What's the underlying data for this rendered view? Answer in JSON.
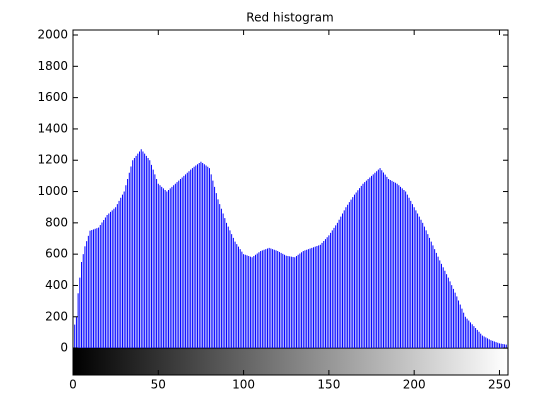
{
  "chart_data": {
    "type": "stem",
    "title": "Red histogram",
    "x": [
      0,
      1,
      2,
      3,
      4,
      5,
      6,
      7,
      8,
      9,
      10,
      11,
      12,
      13,
      14,
      15,
      16,
      17,
      18,
      19,
      20,
      21,
      22,
      23,
      24,
      25,
      26,
      27,
      28,
      29,
      30,
      31,
      32,
      33,
      34,
      35,
      36,
      37,
      38,
      39,
      40,
      41,
      42,
      43,
      44,
      45,
      46,
      47,
      48,
      49,
      50,
      51,
      52,
      53,
      54,
      55,
      56,
      57,
      58,
      59,
      60,
      61,
      62,
      63,
      64,
      65,
      66,
      67,
      68,
      69,
      70,
      71,
      72,
      73,
      74,
      75,
      76,
      77,
      78,
      79,
      80,
      81,
      82,
      83,
      84,
      85,
      86,
      87,
      88,
      89,
      90,
      91,
      92,
      93,
      94,
      95,
      96,
      97,
      98,
      99,
      100,
      101,
      102,
      103,
      104,
      105,
      106,
      107,
      108,
      109,
      110,
      111,
      112,
      113,
      114,
      115,
      116,
      117,
      118,
      119,
      120,
      121,
      122,
      123,
      124,
      125,
      126,
      127,
      128,
      129,
      130,
      131,
      132,
      133,
      134,
      135,
      136,
      137,
      138,
      139,
      140,
      141,
      142,
      143,
      144,
      145,
      146,
      147,
      148,
      149,
      150,
      151,
      152,
      153,
      154,
      155,
      156,
      157,
      158,
      159,
      160,
      161,
      162,
      163,
      164,
      165,
      166,
      167,
      168,
      169,
      170,
      171,
      172,
      173,
      174,
      175,
      176,
      177,
      178,
      179,
      180,
      181,
      182,
      183,
      184,
      185,
      186,
      187,
      188,
      189,
      190,
      191,
      192,
      193,
      194,
      195,
      196,
      197,
      198,
      199,
      200,
      201,
      202,
      203,
      204,
      205,
      206,
      207,
      208,
      209,
      210,
      211,
      212,
      213,
      214,
      215,
      216,
      217,
      218,
      219,
      220,
      221,
      222,
      223,
      224,
      225,
      226,
      227,
      228,
      229,
      230,
      231,
      232,
      233,
      234,
      235,
      236,
      237,
      238,
      239,
      240,
      241,
      242,
      243,
      244,
      245,
      246,
      247,
      248,
      249,
      250,
      251,
      252,
      253,
      254,
      255
    ],
    "values": [
      100,
      150,
      200,
      350,
      450,
      550,
      600,
      650,
      683,
      717,
      750,
      754,
      758,
      762,
      766,
      770,
      786,
      802,
      818,
      834,
      850,
      860,
      870,
      880,
      890,
      900,
      920,
      940,
      960,
      980,
      1000,
      1040,
      1080,
      1120,
      1160,
      1200,
      1214,
      1228,
      1242,
      1256,
      1270,
      1256,
      1242,
      1228,
      1214,
      1200,
      1170,
      1140,
      1110,
      1080,
      1050,
      1040,
      1030,
      1020,
      1010,
      1000,
      1010,
      1020,
      1030,
      1040,
      1050,
      1060,
      1070,
      1080,
      1090,
      1100,
      1110,
      1120,
      1130,
      1140,
      1150,
      1158,
      1166,
      1174,
      1182,
      1190,
      1182,
      1174,
      1166,
      1158,
      1150,
      1110,
      1070,
      1030,
      990,
      950,
      920,
      890,
      860,
      830,
      800,
      776,
      752,
      728,
      704,
      680,
      664,
      648,
      632,
      616,
      600,
      596,
      592,
      588,
      584,
      580,
      588,
      596,
      604,
      612,
      620,
      624,
      628,
      632,
      636,
      640,
      636,
      632,
      628,
      624,
      620,
      614,
      608,
      602,
      596,
      590,
      588,
      586,
      584,
      582,
      580,
      588,
      596,
      604,
      612,
      620,
      624,
      628,
      632,
      636,
      640,
      644,
      648,
      652,
      656,
      660,
      672,
      684,
      696,
      708,
      720,
      736,
      752,
      768,
      784,
      800,
      820,
      840,
      860,
      880,
      900,
      916,
      932,
      948,
      964,
      980,
      994,
      1008,
      1022,
      1036,
      1050,
      1060,
      1070,
      1080,
      1090,
      1100,
      1110,
      1120,
      1130,
      1140,
      1150,
      1136,
      1122,
      1108,
      1094,
      1080,
      1074,
      1068,
      1062,
      1056,
      1050,
      1040,
      1030,
      1020,
      1010,
      1000,
      980,
      960,
      940,
      920,
      900,
      880,
      860,
      840,
      820,
      800,
      776,
      752,
      728,
      704,
      680,
      656,
      632,
      608,
      584,
      560,
      538,
      516,
      494,
      472,
      450,
      426,
      402,
      378,
      354,
      330,
      304,
      278,
      252,
      226,
      200,
      188,
      176,
      164,
      152,
      140,
      128,
      116,
      104,
      92,
      80,
      74,
      68,
      62,
      56,
      50,
      46,
      42,
      38,
      34,
      30,
      28,
      26,
      24,
      22,
      20
    ],
    "color": "#0000ff",
    "xlim": [
      0,
      255
    ],
    "xticks": [
      0,
      50,
      100,
      150,
      200,
      250
    ],
    "ylim": [
      -172,
      2032
    ],
    "yticks": [
      0,
      200,
      400,
      600,
      800,
      1000,
      1200,
      1400,
      1600,
      1800,
      2000
    ]
  }
}
